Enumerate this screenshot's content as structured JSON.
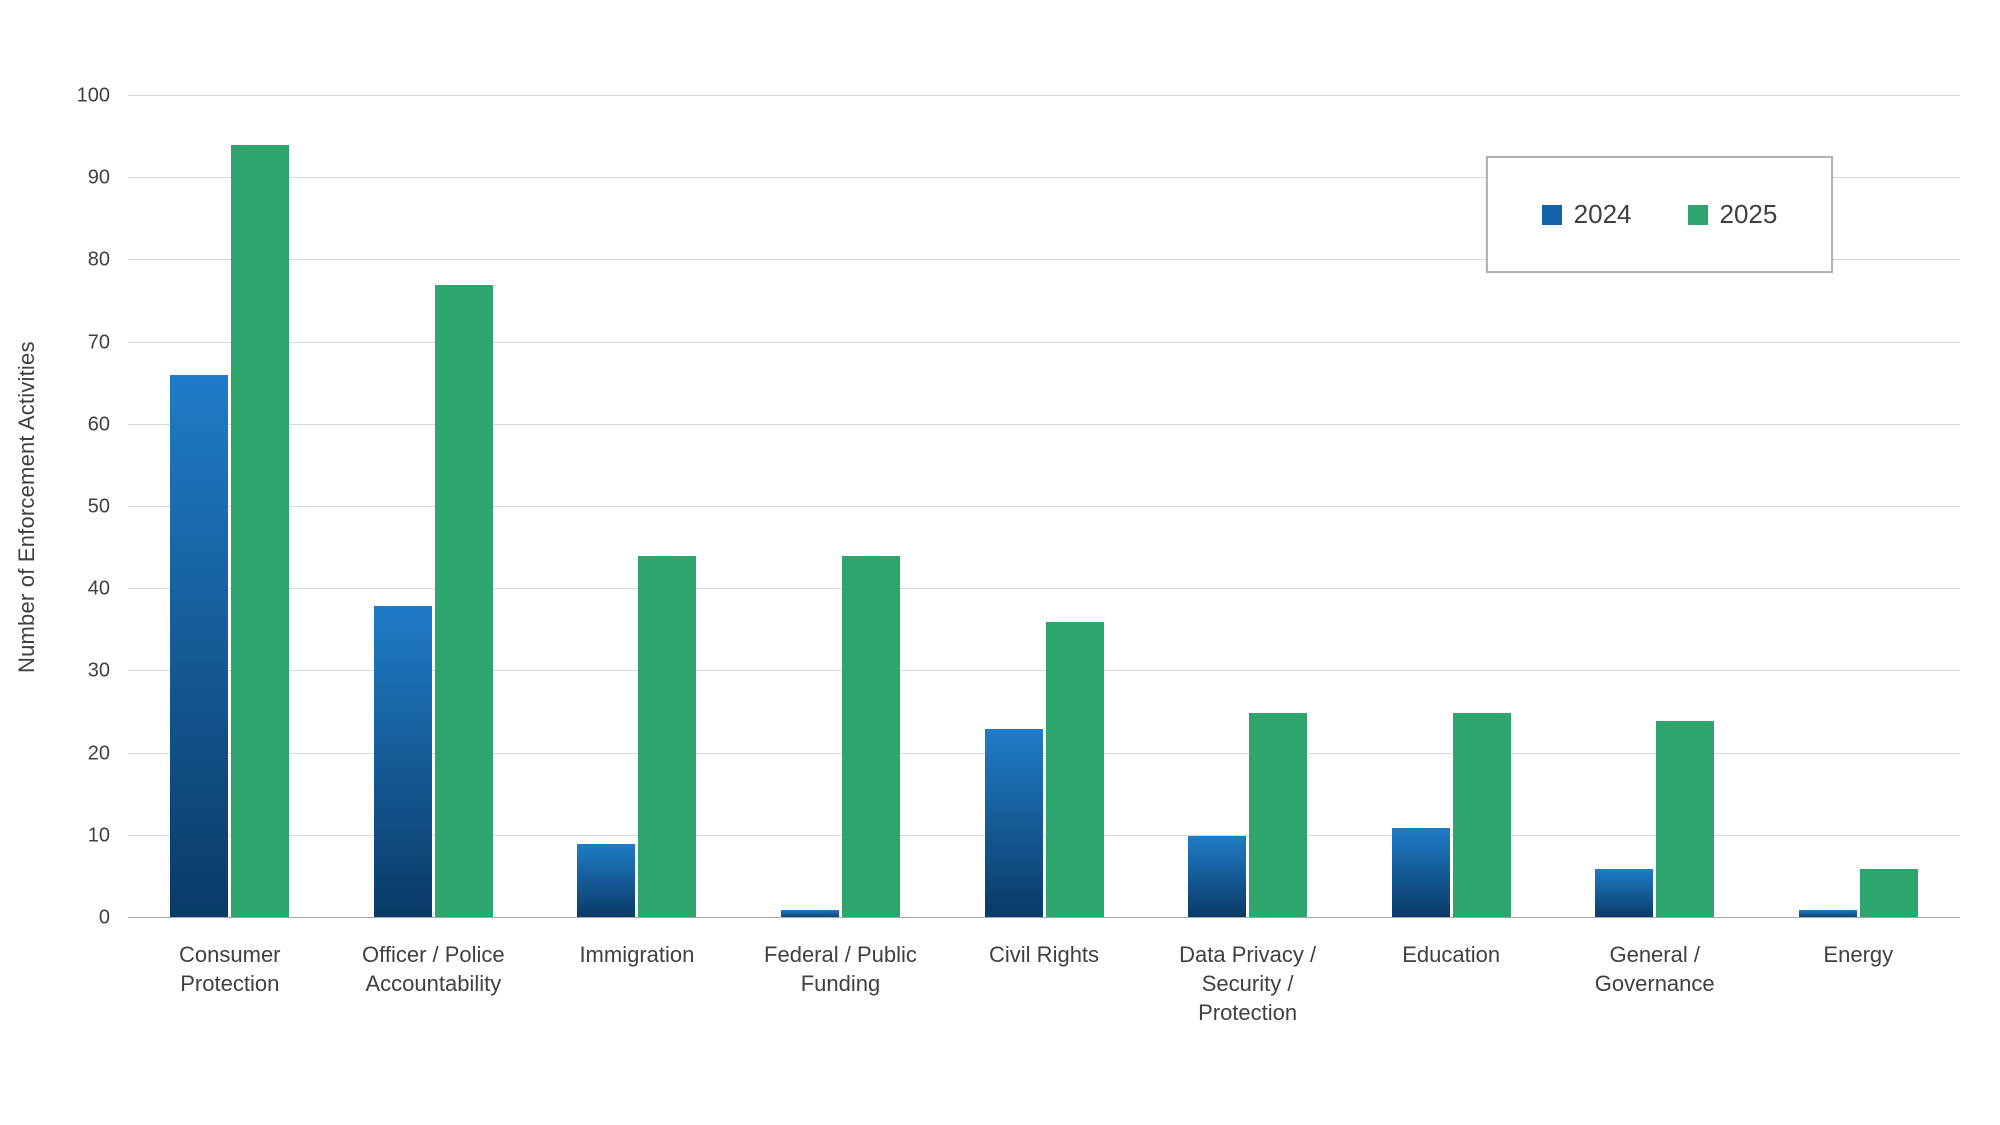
{
  "chart_data": {
    "type": "bar",
    "title": "",
    "xlabel": "",
    "ylabel": "Number of Enforcement Activities",
    "ylim": [
      0,
      100
    ],
    "ytick_step": 10,
    "grid": true,
    "legend_position": "top-right",
    "categories": [
      "Consumer Protection",
      "Officer / Police Accountability",
      "Immigration",
      "Federal / Public Funding",
      "Civil Rights",
      "Data Privacy / Security / Protection",
      "Education",
      "General / Governance",
      "Energy"
    ],
    "series": [
      {
        "name": "2024",
        "color": "#1464AC",
        "gradient_top": "#1F7CC7",
        "gradient_bottom": "#0A3A66",
        "values": [
          66,
          38,
          9,
          1,
          23,
          10,
          11,
          6,
          1
        ]
      },
      {
        "name": "2025",
        "color": "#2FA56E",
        "values": [
          94,
          77,
          44,
          44,
          36,
          25,
          25,
          24,
          6
        ]
      }
    ]
  }
}
